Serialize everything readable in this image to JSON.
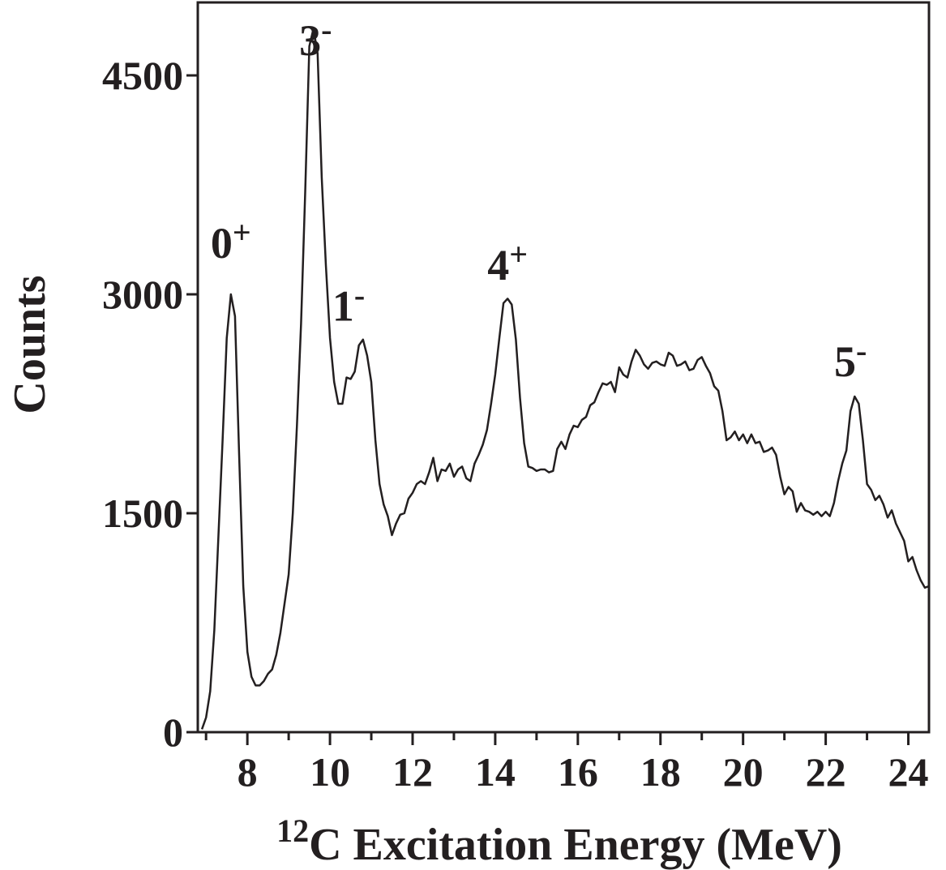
{
  "chart_data": {
    "type": "line",
    "title": "",
    "xlabel": {
      "superscript": "12",
      "text": "C Excitation Energy (MeV)"
    },
    "ylabel": "Counts",
    "xlim": [
      6.8,
      24.5
    ],
    "ylim": [
      0,
      5000
    ],
    "x_ticks": [
      8,
      10,
      12,
      14,
      16,
      18,
      20,
      22,
      24
    ],
    "x_tick_labels": [
      "8",
      "10",
      "12",
      "14",
      "16",
      "18",
      "20",
      "22",
      "24"
    ],
    "x_minor_ticks": [
      7,
      9,
      11,
      13,
      15,
      17,
      19,
      21,
      23
    ],
    "y_ticks": [
      0,
      1500,
      3000,
      4500
    ],
    "y_tick_labels": [
      "0",
      "1500",
      "3000",
      "4500"
    ],
    "grid": false,
    "series": [
      {
        "color": "#231f20",
        "points": [
          [
            6.9,
            20
          ],
          [
            7.0,
            100
          ],
          [
            7.1,
            280
          ],
          [
            7.2,
            700
          ],
          [
            7.3,
            1350
          ],
          [
            7.4,
            2000
          ],
          [
            7.5,
            2700
          ],
          [
            7.6,
            3000
          ],
          [
            7.7,
            2850
          ],
          [
            7.8,
            1900
          ],
          [
            7.9,
            1000
          ],
          [
            8.0,
            550
          ],
          [
            8.1,
            380
          ],
          [
            8.2,
            320
          ],
          [
            8.3,
            320
          ],
          [
            8.4,
            350
          ],
          [
            8.5,
            400
          ],
          [
            8.6,
            430
          ],
          [
            8.7,
            530
          ],
          [
            8.8,
            680
          ],
          [
            8.9,
            880
          ],
          [
            9.0,
            1080
          ],
          [
            9.1,
            1500
          ],
          [
            9.2,
            2100
          ],
          [
            9.3,
            2800
          ],
          [
            9.4,
            3700
          ],
          [
            9.5,
            4700
          ],
          [
            9.6,
            4820
          ],
          [
            9.7,
            4650
          ],
          [
            9.8,
            3800
          ],
          [
            9.9,
            3200
          ],
          [
            10.0,
            2700
          ],
          [
            10.1,
            2400
          ],
          [
            10.2,
            2250
          ],
          [
            10.3,
            2250
          ],
          [
            10.4,
            2430
          ],
          [
            10.5,
            2420
          ],
          [
            10.6,
            2470
          ],
          [
            10.7,
            2650
          ],
          [
            10.8,
            2690
          ],
          [
            10.9,
            2580
          ],
          [
            11.0,
            2400
          ],
          [
            11.1,
            2000
          ],
          [
            11.2,
            1700
          ],
          [
            11.3,
            1560
          ],
          [
            11.4,
            1480
          ],
          [
            11.5,
            1350
          ],
          [
            11.6,
            1430
          ],
          [
            11.7,
            1490
          ],
          [
            11.8,
            1500
          ],
          [
            11.9,
            1600
          ],
          [
            12.0,
            1640
          ],
          [
            12.1,
            1700
          ],
          [
            12.2,
            1720
          ],
          [
            12.3,
            1700
          ],
          [
            12.4,
            1780
          ],
          [
            12.5,
            1880
          ],
          [
            12.6,
            1720
          ],
          [
            12.7,
            1800
          ],
          [
            12.8,
            1790
          ],
          [
            12.9,
            1840
          ],
          [
            13.0,
            1750
          ],
          [
            13.1,
            1800
          ],
          [
            13.2,
            1820
          ],
          [
            13.3,
            1740
          ],
          [
            13.4,
            1720
          ],
          [
            13.5,
            1840
          ],
          [
            13.6,
            1900
          ],
          [
            13.7,
            1970
          ],
          [
            13.8,
            2070
          ],
          [
            13.9,
            2250
          ],
          [
            14.0,
            2450
          ],
          [
            14.1,
            2700
          ],
          [
            14.2,
            2940
          ],
          [
            14.3,
            2970
          ],
          [
            14.4,
            2930
          ],
          [
            14.5,
            2690
          ],
          [
            14.6,
            2290
          ],
          [
            14.7,
            1980
          ],
          [
            14.8,
            1820
          ],
          [
            14.9,
            1810
          ],
          [
            15.0,
            1790
          ],
          [
            15.1,
            1800
          ],
          [
            15.2,
            1800
          ],
          [
            15.3,
            1780
          ],
          [
            15.4,
            1790
          ],
          [
            15.5,
            1940
          ],
          [
            15.6,
            1990
          ],
          [
            15.7,
            1940
          ],
          [
            15.8,
            2040
          ],
          [
            15.9,
            2100
          ],
          [
            16.0,
            2090
          ],
          [
            16.1,
            2140
          ],
          [
            16.2,
            2160
          ],
          [
            16.3,
            2240
          ],
          [
            16.4,
            2260
          ],
          [
            16.5,
            2330
          ],
          [
            16.6,
            2390
          ],
          [
            16.7,
            2380
          ],
          [
            16.8,
            2400
          ],
          [
            16.9,
            2330
          ],
          [
            17.0,
            2500
          ],
          [
            17.1,
            2450
          ],
          [
            17.2,
            2430
          ],
          [
            17.3,
            2540
          ],
          [
            17.4,
            2620
          ],
          [
            17.5,
            2580
          ],
          [
            17.6,
            2520
          ],
          [
            17.7,
            2490
          ],
          [
            17.8,
            2530
          ],
          [
            17.9,
            2540
          ],
          [
            18.0,
            2520
          ],
          [
            18.1,
            2510
          ],
          [
            18.2,
            2600
          ],
          [
            18.3,
            2580
          ],
          [
            18.4,
            2510
          ],
          [
            18.5,
            2520
          ],
          [
            18.6,
            2540
          ],
          [
            18.7,
            2480
          ],
          [
            18.8,
            2490
          ],
          [
            18.9,
            2550
          ],
          [
            19.0,
            2570
          ],
          [
            19.1,
            2510
          ],
          [
            19.2,
            2460
          ],
          [
            19.3,
            2370
          ],
          [
            19.4,
            2340
          ],
          [
            19.5,
            2200
          ],
          [
            19.6,
            2000
          ],
          [
            19.7,
            2020
          ],
          [
            19.8,
            2060
          ],
          [
            19.9,
            2000
          ],
          [
            20.0,
            2040
          ],
          [
            20.1,
            1980
          ],
          [
            20.2,
            2040
          ],
          [
            20.3,
            1980
          ],
          [
            20.4,
            1990
          ],
          [
            20.5,
            1920
          ],
          [
            20.6,
            1930
          ],
          [
            20.7,
            1950
          ],
          [
            20.8,
            1900
          ],
          [
            20.9,
            1750
          ],
          [
            21.0,
            1630
          ],
          [
            21.1,
            1680
          ],
          [
            21.2,
            1650
          ],
          [
            21.3,
            1510
          ],
          [
            21.4,
            1570
          ],
          [
            21.5,
            1520
          ],
          [
            21.6,
            1510
          ],
          [
            21.7,
            1490
          ],
          [
            21.8,
            1510
          ],
          [
            21.9,
            1480
          ],
          [
            22.0,
            1510
          ],
          [
            22.1,
            1480
          ],
          [
            22.2,
            1570
          ],
          [
            22.3,
            1720
          ],
          [
            22.4,
            1840
          ],
          [
            22.5,
            1930
          ],
          [
            22.6,
            2200
          ],
          [
            22.7,
            2300
          ],
          [
            22.8,
            2250
          ],
          [
            22.9,
            2000
          ],
          [
            23.0,
            1700
          ],
          [
            23.1,
            1660
          ],
          [
            23.2,
            1590
          ],
          [
            23.3,
            1620
          ],
          [
            23.4,
            1560
          ],
          [
            23.5,
            1470
          ],
          [
            23.6,
            1520
          ],
          [
            23.7,
            1430
          ],
          [
            23.8,
            1370
          ],
          [
            23.9,
            1310
          ],
          [
            24.0,
            1170
          ],
          [
            24.1,
            1200
          ],
          [
            24.2,
            1110
          ],
          [
            24.3,
            1040
          ],
          [
            24.4,
            990
          ],
          [
            24.5,
            1000
          ]
        ]
      }
    ],
    "annotations": [
      {
        "id": "0plus",
        "base": "0",
        "superscript": "+",
        "x": 7.6,
        "y": 3250
      },
      {
        "id": "3minus",
        "base": "3",
        "superscript": "-",
        "x": 9.65,
        "y": 4640
      },
      {
        "id": "1minus",
        "base": "1",
        "superscript": "-",
        "x": 10.45,
        "y": 2820
      },
      {
        "id": "4plus",
        "base": "4",
        "superscript": "+",
        "x": 14.3,
        "y": 3100
      },
      {
        "id": "5minus",
        "base": "5",
        "superscript": "-",
        "x": 22.6,
        "y": 2440
      }
    ]
  }
}
